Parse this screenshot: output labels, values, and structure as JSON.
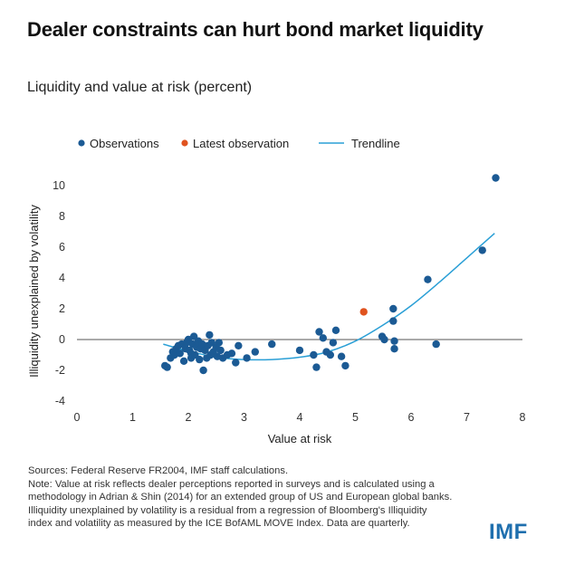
{
  "title": "Dealer constraints can hurt bond market liquidity",
  "subtitle": "Liquidity and value at risk (percent)",
  "logo": "IMF",
  "notes": {
    "sources": "Sources: Federal Reserve FR2004, IMF staff calculations.",
    "note": "Note: Value at risk reflects dealer perceptions reported in surveys and is calculated using a methodology in Adrian & Shin (2014) for an extended group of US and European global banks. Illiquidity unexplained by volatility is a residual from a regression of Bloomberg's Illiquidity index and volatility as measured by the ICE BofAML MOVE Index. Data are quarterly."
  },
  "colors": {
    "observations": "#1b5a94",
    "latest": "#e0531f",
    "trendline": "#2a9fd6",
    "zero_line": "#555555",
    "axis_text": "#333333"
  },
  "chart_data": {
    "type": "scatter",
    "xlabel": "Value at risk",
    "ylabel": "Illiquidity unexplained by volatility",
    "xlim": [
      0,
      8
    ],
    "ylim": [
      -4,
      11
    ],
    "x_ticks": [
      "0",
      "1",
      "2",
      "3",
      "4",
      "5",
      "6",
      "7",
      "8"
    ],
    "y_ticks": [
      "-4",
      "-2",
      "0",
      "2",
      "4",
      "6",
      "8",
      "10"
    ],
    "legend": [
      {
        "name": "Observations",
        "kind": "dot",
        "color": "#1b5a94"
      },
      {
        "name": "Latest observation",
        "kind": "dot",
        "color": "#e0531f"
      },
      {
        "name": "Trendline",
        "kind": "line",
        "color": "#2a9fd6"
      }
    ],
    "legend_position": "top-left",
    "grid": false,
    "series": [
      {
        "name": "Observations",
        "points": [
          [
            1.58,
            -1.7
          ],
          [
            1.62,
            -1.8
          ],
          [
            1.68,
            -1.2
          ],
          [
            1.72,
            -0.8
          ],
          [
            1.75,
            -1.0
          ],
          [
            1.78,
            -0.6
          ],
          [
            1.82,
            -0.4
          ],
          [
            1.85,
            -0.9
          ],
          [
            1.88,
            -0.3
          ],
          [
            1.92,
            -1.4
          ],
          [
            1.95,
            -0.6
          ],
          [
            1.97,
            -0.2
          ],
          [
            2.0,
            0.0
          ],
          [
            2.02,
            -0.7
          ],
          [
            2.05,
            -1.2
          ],
          [
            2.05,
            -0.9
          ],
          [
            2.08,
            -0.3
          ],
          [
            2.1,
            0.2
          ],
          [
            2.12,
            -1.0
          ],
          [
            2.15,
            -0.5
          ],
          [
            2.18,
            -0.1
          ],
          [
            2.2,
            -1.3
          ],
          [
            2.22,
            -0.6
          ],
          [
            2.25,
            -0.3
          ],
          [
            2.27,
            -2.0
          ],
          [
            2.3,
            -0.7
          ],
          [
            2.33,
            -1.2
          ],
          [
            2.35,
            -0.4
          ],
          [
            2.38,
            0.3
          ],
          [
            2.4,
            -1.0
          ],
          [
            2.42,
            -0.2
          ],
          [
            2.45,
            -0.8
          ],
          [
            2.5,
            -0.5
          ],
          [
            2.52,
            -1.1
          ],
          [
            2.55,
            -0.2
          ],
          [
            2.58,
            -0.7
          ],
          [
            2.62,
            -1.2
          ],
          [
            2.7,
            -1.0
          ],
          [
            2.78,
            -0.9
          ],
          [
            2.85,
            -1.5
          ],
          [
            2.9,
            -0.4
          ],
          [
            3.05,
            -1.2
          ],
          [
            3.2,
            -0.8
          ],
          [
            3.5,
            -0.3
          ],
          [
            4.0,
            -0.7
          ],
          [
            4.25,
            -1.0
          ],
          [
            4.3,
            -1.8
          ],
          [
            4.35,
            0.5
          ],
          [
            4.42,
            0.1
          ],
          [
            4.48,
            -0.8
          ],
          [
            4.55,
            -1.0
          ],
          [
            4.6,
            -0.2
          ],
          [
            4.65,
            0.6
          ],
          [
            4.75,
            -1.1
          ],
          [
            4.82,
            -1.7
          ],
          [
            5.48,
            0.2
          ],
          [
            5.52,
            0.0
          ],
          [
            5.68,
            2.0
          ],
          [
            5.68,
            1.2
          ],
          [
            5.7,
            -0.1
          ],
          [
            5.7,
            -0.6
          ],
          [
            6.3,
            3.9
          ],
          [
            6.45,
            -0.3
          ],
          [
            7.28,
            5.8
          ],
          [
            7.52,
            10.5
          ]
        ]
      },
      {
        "name": "Latest observation",
        "points": [
          [
            5.15,
            1.8
          ]
        ]
      },
      {
        "name": "Trendline",
        "points": [
          [
            1.55,
            -0.3
          ],
          [
            2.0,
            -0.75
          ],
          [
            2.5,
            -1.15
          ],
          [
            3.0,
            -1.3
          ],
          [
            3.5,
            -1.3
          ],
          [
            4.0,
            -1.15
          ],
          [
            4.5,
            -0.8
          ],
          [
            5.0,
            -0.1
          ],
          [
            5.5,
            0.95
          ],
          [
            6.0,
            2.2
          ],
          [
            6.5,
            3.7
          ],
          [
            7.0,
            5.3
          ],
          [
            7.5,
            6.9
          ]
        ]
      }
    ]
  }
}
